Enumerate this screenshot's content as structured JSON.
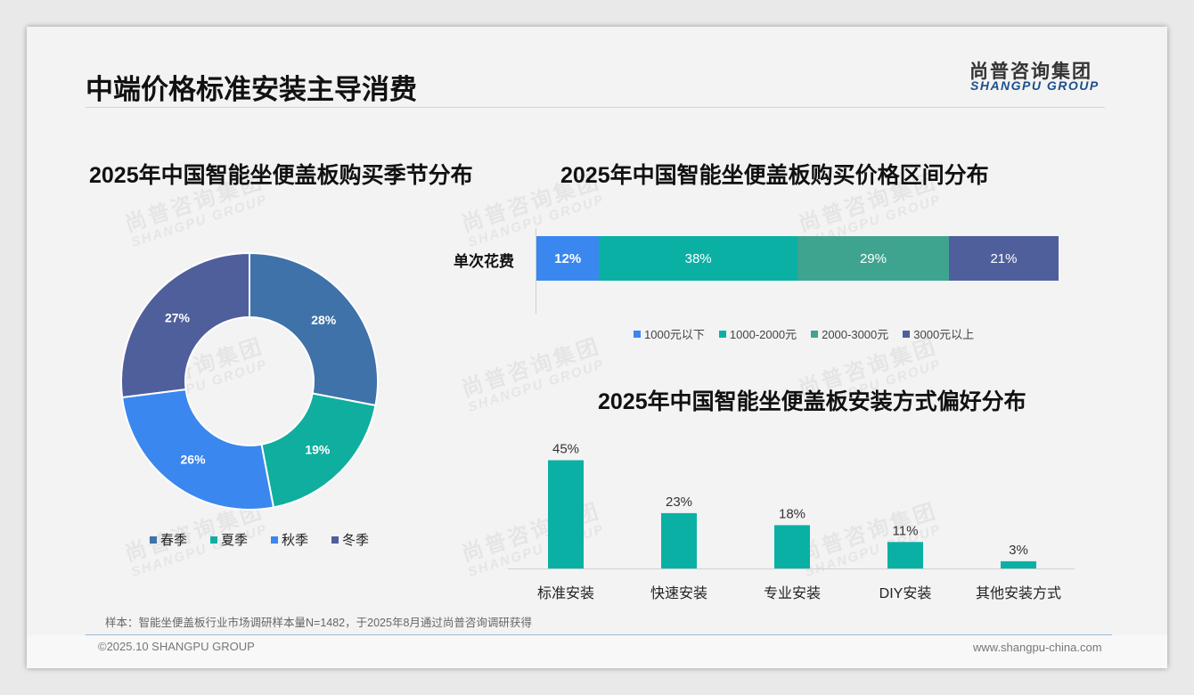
{
  "header": {
    "title": "中端价格标准安装主导消费",
    "logo_cn": "尚普咨询集团",
    "logo_en": "SHANGPU GROUP"
  },
  "watermark": {
    "cn": "尚普咨询集团",
    "en": "SHANGPU GROUP"
  },
  "chart_data": [
    {
      "type": "pie",
      "title": "2025年中国智能坐便盖板购买季节分布",
      "categories": [
        "春季",
        "夏季",
        "秋季",
        "冬季"
      ],
      "values": [
        28,
        19,
        26,
        27
      ],
      "labels": [
        "28%",
        "19%",
        "26%",
        "27%"
      ],
      "colors": [
        "#3f72a8",
        "#10ae9f",
        "#3a87f0",
        "#4f5f9c"
      ],
      "donut": true,
      "legend": "bottom"
    },
    {
      "type": "bar",
      "orientation": "horizontal",
      "stacked": true,
      "title": "2025年中国智能坐便盖板购买价格区间分布",
      "categories": [
        "单次花费"
      ],
      "series": [
        {
          "name": "1000元以下",
          "values": [
            12
          ],
          "label": "12%",
          "color": "#3a87f0"
        },
        {
          "name": "1000-2000元",
          "values": [
            38
          ],
          "label": "38%",
          "color": "#0bb0a5"
        },
        {
          "name": "2000-3000元",
          "values": [
            29
          ],
          "label": "29%",
          "color": "#3ea48f"
        },
        {
          "name": "3000元以上",
          "values": [
            21
          ],
          "label": "21%",
          "color": "#4f5f9c"
        }
      ],
      "legend": "bottom"
    },
    {
      "type": "bar",
      "title": "2025年中国智能坐便盖板安装方式偏好分布",
      "categories": [
        "标准安装",
        "快速安装",
        "专业安装",
        "DIY安装",
        "其他安装方式"
      ],
      "values": [
        45,
        23,
        18,
        11,
        3
      ],
      "labels": [
        "45%",
        "23%",
        "18%",
        "11%",
        "3%"
      ],
      "color": "#0bb0a5"
    }
  ],
  "footer": {
    "note": "样本：智能坐便盖板行业市场调研样本量N=1482，于2025年8月通过尚普咨询调研获得",
    "copyright": "©2025.10 SHANGPU GROUP",
    "website": "www.shangpu-china.com"
  }
}
